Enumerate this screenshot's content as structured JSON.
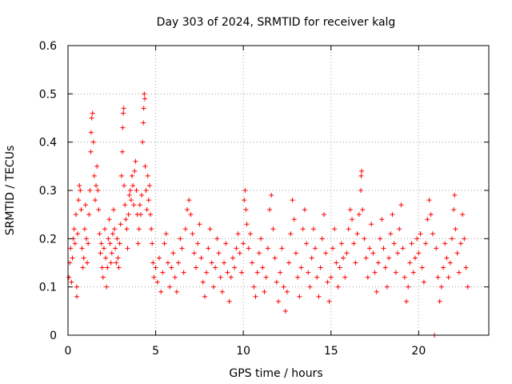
{
  "chart_data": {
    "type": "scatter",
    "title": "Day 303 of 2024, SRMTID for receiver kalg",
    "xlabel": "GPS time / hours",
    "ylabel": "SRMTID / TECUs",
    "xlim": [
      0,
      24
    ],
    "ylim": [
      0,
      0.6
    ],
    "xticks": [
      0,
      5,
      10,
      15,
      20
    ],
    "xtick_labels": [
      "0",
      "5",
      "10",
      "15",
      "20"
    ],
    "yticks": [
      0,
      0.1,
      0.2,
      0.3,
      0.4,
      0.5,
      0.6
    ],
    "ytick_labels": [
      "0",
      "0.1",
      "0.2",
      "0.3",
      "0.4",
      "0.5",
      "0.6"
    ],
    "grid": true,
    "marker": "plus",
    "series_color": "#ff0000",
    "series": [
      {
        "name": "SRMTID",
        "points": [
          [
            0.05,
            0.12
          ],
          [
            0.1,
            0.15
          ],
          [
            0.15,
            0.18
          ],
          [
            0.2,
            0.11
          ],
          [
            0.25,
            0.16
          ],
          [
            0.3,
            0.2
          ],
          [
            0.35,
            0.22
          ],
          [
            0.4,
            0.19
          ],
          [
            0.45,
            0.25
          ],
          [
            0.5,
            0.1
          ],
          [
            0.5,
            0.08
          ],
          [
            0.55,
            0.21
          ],
          [
            0.6,
            0.28
          ],
          [
            0.65,
            0.31
          ],
          [
            0.7,
            0.3
          ],
          [
            0.75,
            0.26
          ],
          [
            0.8,
            0.18
          ],
          [
            0.85,
            0.14
          ],
          [
            0.9,
            0.16
          ],
          [
            0.95,
            0.22
          ],
          [
            1.0,
            0.27
          ],
          [
            1.05,
            0.2
          ],
          [
            1.1,
            0.15
          ],
          [
            1.15,
            0.19
          ],
          [
            1.2,
            0.25
          ],
          [
            1.25,
            0.3
          ],
          [
            1.3,
            0.38
          ],
          [
            1.32,
            0.42
          ],
          [
            1.35,
            0.45
          ],
          [
            1.4,
            0.46
          ],
          [
            1.45,
            0.4
          ],
          [
            1.5,
            0.33
          ],
          [
            1.55,
            0.28
          ],
          [
            1.6,
            0.31
          ],
          [
            1.65,
            0.35
          ],
          [
            1.7,
            0.3
          ],
          [
            1.75,
            0.26
          ],
          [
            1.8,
            0.21
          ],
          [
            1.85,
            0.17
          ],
          [
            1.9,
            0.19
          ],
          [
            1.95,
            0.14
          ],
          [
            2.0,
            0.12
          ],
          [
            2.05,
            0.18
          ],
          [
            2.1,
            0.22
          ],
          [
            2.15,
            0.16
          ],
          [
            2.2,
            0.1
          ],
          [
            2.25,
            0.14
          ],
          [
            2.3,
            0.2
          ],
          [
            2.35,
            0.24
          ],
          [
            2.4,
            0.19
          ],
          [
            2.45,
            0.15
          ],
          [
            2.5,
            0.17
          ],
          [
            2.55,
            0.21
          ],
          [
            2.6,
            0.26
          ],
          [
            2.65,
            0.22
          ],
          [
            2.7,
            0.18
          ],
          [
            2.75,
            0.15
          ],
          [
            2.8,
            0.2
          ],
          [
            2.85,
            0.16
          ],
          [
            2.9,
            0.14
          ],
          [
            2.95,
            0.19
          ],
          [
            3.0,
            0.23
          ],
          [
            3.05,
            0.33
          ],
          [
            3.1,
            0.38
          ],
          [
            3.12,
            0.43
          ],
          [
            3.15,
            0.46
          ],
          [
            3.18,
            0.47
          ],
          [
            3.2,
            0.31
          ],
          [
            3.25,
            0.27
          ],
          [
            3.3,
            0.24
          ],
          [
            3.35,
            0.22
          ],
          [
            3.4,
            0.18
          ],
          [
            3.45,
            0.25
          ],
          [
            3.5,
            0.29
          ],
          [
            3.55,
            0.3
          ],
          [
            3.6,
            0.28
          ],
          [
            3.65,
            0.33
          ],
          [
            3.7,
            0.31
          ],
          [
            3.75,
            0.27
          ],
          [
            3.8,
            0.34
          ],
          [
            3.85,
            0.36
          ],
          [
            3.9,
            0.3
          ],
          [
            3.95,
            0.25
          ],
          [
            4.0,
            0.19
          ],
          [
            4.05,
            0.22
          ],
          [
            4.1,
            0.27
          ],
          [
            4.15,
            0.25
          ],
          [
            4.2,
            0.29
          ],
          [
            4.25,
            0.4
          ],
          [
            4.3,
            0.44
          ],
          [
            4.32,
            0.47
          ],
          [
            4.35,
            0.5
          ],
          [
            4.38,
            0.49
          ],
          [
            4.4,
            0.35
          ],
          [
            4.45,
            0.3
          ],
          [
            4.5,
            0.26
          ],
          [
            4.55,
            0.33
          ],
          [
            4.6,
            0.28
          ],
          [
            4.65,
            0.31
          ],
          [
            4.7,
            0.25
          ],
          [
            4.75,
            0.22
          ],
          [
            4.8,
            0.19
          ],
          [
            4.85,
            0.15
          ],
          [
            4.9,
            0.12
          ],
          [
            5.0,
            0.14
          ],
          [
            5.1,
            0.11
          ],
          [
            5.2,
            0.16
          ],
          [
            5.3,
            0.09
          ],
          [
            5.4,
            0.13
          ],
          [
            5.5,
            0.19
          ],
          [
            5.6,
            0.21
          ],
          [
            5.7,
            0.15
          ],
          [
            5.8,
            0.1
          ],
          [
            5.9,
            0.14
          ],
          [
            6.0,
            0.17
          ],
          [
            6.1,
            0.12
          ],
          [
            6.2,
            0.09
          ],
          [
            6.3,
            0.15
          ],
          [
            6.4,
            0.2
          ],
          [
            6.5,
            0.18
          ],
          [
            6.6,
            0.13
          ],
          [
            6.7,
            0.22
          ],
          [
            6.8,
            0.26
          ],
          [
            6.9,
            0.28
          ],
          [
            7.0,
            0.25
          ],
          [
            7.1,
            0.21
          ],
          [
            7.2,
            0.17
          ],
          [
            7.3,
            0.14
          ],
          [
            7.4,
            0.19
          ],
          [
            7.5,
            0.23
          ],
          [
            7.6,
            0.16
          ],
          [
            7.7,
            0.11
          ],
          [
            7.8,
            0.08
          ],
          [
            7.9,
            0.13
          ],
          [
            8.0,
            0.18
          ],
          [
            8.1,
            0.22
          ],
          [
            8.2,
            0.15
          ],
          [
            8.3,
            0.1
          ],
          [
            8.4,
            0.14
          ],
          [
            8.5,
            0.2
          ],
          [
            8.6,
            0.17
          ],
          [
            8.7,
            0.12
          ],
          [
            8.8,
            0.09
          ],
          [
            8.9,
            0.15
          ],
          [
            9.0,
            0.19
          ],
          [
            9.1,
            0.13
          ],
          [
            9.2,
            0.07
          ],
          [
            9.3,
            0.12
          ],
          [
            9.4,
            0.16
          ],
          [
            9.5,
            0.14
          ],
          [
            9.6,
            0.18
          ],
          [
            9.7,
            0.21
          ],
          [
            9.8,
            0.17
          ],
          [
            9.9,
            0.13
          ],
          [
            10.0,
            0.19
          ],
          [
            10.05,
            0.28
          ],
          [
            10.1,
            0.3
          ],
          [
            10.15,
            0.26
          ],
          [
            10.2,
            0.23
          ],
          [
            10.3,
            0.18
          ],
          [
            10.4,
            0.21
          ],
          [
            10.5,
            0.15
          ],
          [
            10.6,
            0.1
          ],
          [
            10.7,
            0.08
          ],
          [
            10.8,
            0.13
          ],
          [
            10.9,
            0.17
          ],
          [
            11.0,
            0.2
          ],
          [
            11.1,
            0.14
          ],
          [
            11.2,
            0.09
          ],
          [
            11.3,
            0.12
          ],
          [
            11.4,
            0.18
          ],
          [
            11.5,
            0.26
          ],
          [
            11.6,
            0.29
          ],
          [
            11.7,
            0.22
          ],
          [
            11.8,
            0.16
          ],
          [
            11.9,
            0.11
          ],
          [
            12.0,
            0.07
          ],
          [
            12.1,
            0.13
          ],
          [
            12.2,
            0.18
          ],
          [
            12.3,
            0.1
          ],
          [
            12.4,
            0.05
          ],
          [
            12.5,
            0.09
          ],
          [
            12.6,
            0.15
          ],
          [
            12.7,
            0.21
          ],
          [
            12.8,
            0.28
          ],
          [
            12.9,
            0.24
          ],
          [
            13.0,
            0.17
          ],
          [
            13.1,
            0.12
          ],
          [
            13.2,
            0.08
          ],
          [
            13.3,
            0.14
          ],
          [
            13.4,
            0.22
          ],
          [
            13.5,
            0.26
          ],
          [
            13.6,
            0.19
          ],
          [
            13.7,
            0.13
          ],
          [
            13.8,
            0.1
          ],
          [
            13.9,
            0.16
          ],
          [
            14.0,
            0.22
          ],
          [
            14.1,
            0.18
          ],
          [
            14.2,
            0.12
          ],
          [
            14.3,
            0.08
          ],
          [
            14.4,
            0.14
          ],
          [
            14.5,
            0.2
          ],
          [
            14.6,
            0.25
          ],
          [
            14.7,
            0.17
          ],
          [
            14.8,
            0.11
          ],
          [
            14.9,
            0.07
          ],
          [
            15.0,
            0.12
          ],
          [
            15.1,
            0.18
          ],
          [
            15.2,
            0.22
          ],
          [
            15.3,
            0.15
          ],
          [
            15.4,
            0.1
          ],
          [
            15.5,
            0.14
          ],
          [
            15.6,
            0.19
          ],
          [
            15.7,
            0.16
          ],
          [
            15.8,
            0.12
          ],
          [
            15.9,
            0.17
          ],
          [
            16.0,
            0.22
          ],
          [
            16.1,
            0.26
          ],
          [
            16.2,
            0.24
          ],
          [
            16.3,
            0.19
          ],
          [
            16.4,
            0.15
          ],
          [
            16.5,
            0.21
          ],
          [
            16.6,
            0.25
          ],
          [
            16.7,
            0.3
          ],
          [
            16.72,
            0.33
          ],
          [
            16.75,
            0.34
          ],
          [
            16.8,
            0.26
          ],
          [
            16.9,
            0.2
          ],
          [
            17.0,
            0.16
          ],
          [
            17.1,
            0.12
          ],
          [
            17.2,
            0.18
          ],
          [
            17.3,
            0.23
          ],
          [
            17.4,
            0.17
          ],
          [
            17.5,
            0.13
          ],
          [
            17.6,
            0.09
          ],
          [
            17.7,
            0.15
          ],
          [
            17.8,
            0.2
          ],
          [
            17.9,
            0.24
          ],
          [
            18.0,
            0.18
          ],
          [
            18.1,
            0.14
          ],
          [
            18.2,
            0.1
          ],
          [
            18.3,
            0.16
          ],
          [
            18.4,
            0.21
          ],
          [
            18.5,
            0.25
          ],
          [
            18.6,
            0.19
          ],
          [
            18.7,
            0.13
          ],
          [
            18.8,
            0.17
          ],
          [
            18.9,
            0.22
          ],
          [
            19.0,
            0.27
          ],
          [
            19.1,
            0.18
          ],
          [
            19.2,
            0.12
          ],
          [
            19.3,
            0.07
          ],
          [
            19.4,
            0.1
          ],
          [
            19.5,
            0.15
          ],
          [
            19.6,
            0.19
          ],
          [
            19.7,
            0.13
          ],
          [
            19.8,
            0.16
          ],
          [
            19.9,
            0.2
          ],
          [
            20.0,
            0.17
          ],
          [
            20.1,
            0.21
          ],
          [
            20.2,
            0.14
          ],
          [
            20.3,
            0.11
          ],
          [
            20.4,
            0.19
          ],
          [
            20.5,
            0.24
          ],
          [
            20.6,
            0.28
          ],
          [
            20.7,
            0.25
          ],
          [
            20.8,
            0.21
          ],
          [
            20.9,
            0.0
          ],
          [
            21.0,
            0.18
          ],
          [
            21.1,
            0.12
          ],
          [
            21.2,
            0.07
          ],
          [
            21.3,
            0.1
          ],
          [
            21.4,
            0.14
          ],
          [
            21.5,
            0.19
          ],
          [
            21.6,
            0.16
          ],
          [
            21.7,
            0.12
          ],
          [
            21.8,
            0.15
          ],
          [
            21.9,
            0.2
          ],
          [
            22.0,
            0.26
          ],
          [
            22.05,
            0.29
          ],
          [
            22.1,
            0.22
          ],
          [
            22.2,
            0.17
          ],
          [
            22.3,
            0.13
          ],
          [
            22.4,
            0.19
          ],
          [
            22.5,
            0.25
          ],
          [
            22.6,
            0.2
          ],
          [
            22.7,
            0.14
          ],
          [
            22.8,
            0.1
          ]
        ]
      }
    ]
  }
}
